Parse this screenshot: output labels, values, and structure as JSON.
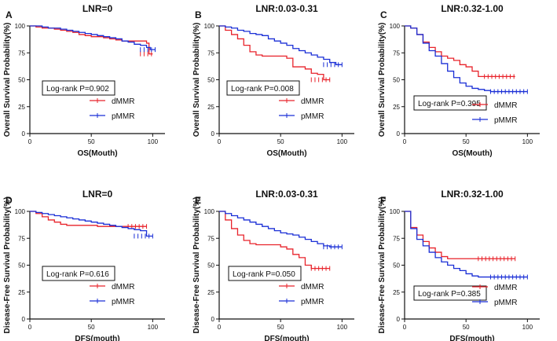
{
  "chart_data": [
    {
      "type": "line",
      "panel": "A",
      "title": "LNR=0",
      "xlabel": "OS(Mouth)",
      "ylabel": "Overall Survival Probability(%)",
      "xlim": [
        0,
        110
      ],
      "ylim": [
        0,
        100
      ],
      "xticks": [
        "0",
        "50",
        "100"
      ],
      "yticks": [
        "0",
        "25",
        "50",
        "75",
        "100"
      ],
      "annotation": "Log-rank P=0.902",
      "series": [
        {
          "name": "dMMR",
          "color": "#e8232b",
          "x": [
            0,
            5,
            10,
            15,
            20,
            25,
            30,
            35,
            40,
            45,
            50,
            55,
            60,
            65,
            70,
            75,
            80,
            85,
            90,
            95,
            97,
            100
          ],
          "y": [
            100,
            99,
            98,
            98,
            97,
            96,
            95,
            94,
            92,
            91,
            90,
            90,
            89,
            88,
            87,
            86,
            86,
            86,
            86,
            84,
            74,
            74
          ]
        },
        {
          "name": "pMMR",
          "color": "#1a2fd6",
          "x": [
            0,
            5,
            10,
            15,
            20,
            25,
            30,
            35,
            40,
            45,
            50,
            55,
            60,
            65,
            70,
            75,
            80,
            85,
            90,
            95,
            98,
            102
          ],
          "y": [
            100,
            100,
            99,
            98,
            98,
            97,
            96,
            95,
            94,
            93,
            92,
            91,
            90,
            89,
            88,
            86,
            85,
            83,
            82,
            80,
            78,
            78
          ]
        }
      ]
    },
    {
      "type": "line",
      "panel": "B",
      "title": "LNR:0.03-0.31",
      "xlabel": "OS(Mouth)",
      "ylabel": "Overall Survival Probability(%)",
      "xlim": [
        0,
        110
      ],
      "ylim": [
        0,
        100
      ],
      "xticks": [
        "0",
        "50",
        "100"
      ],
      "yticks": [
        "0",
        "25",
        "50",
        "75",
        "100"
      ],
      "annotation": "Log-rank P=0.008",
      "series": [
        {
          "name": "dMMR",
          "color": "#e8232b",
          "x": [
            0,
            5,
            10,
            15,
            20,
            25,
            30,
            35,
            40,
            45,
            50,
            55,
            60,
            65,
            70,
            75,
            80,
            85,
            90
          ],
          "y": [
            100,
            96,
            92,
            88,
            82,
            76,
            73,
            72,
            72,
            72,
            72,
            70,
            62,
            62,
            60,
            56,
            55,
            50,
            50
          ]
        },
        {
          "name": "pMMR",
          "color": "#1a2fd6",
          "x": [
            0,
            5,
            10,
            15,
            20,
            25,
            30,
            35,
            40,
            45,
            50,
            55,
            60,
            65,
            70,
            75,
            80,
            85,
            90,
            95,
            100
          ],
          "y": [
            100,
            99,
            98,
            96,
            95,
            93,
            92,
            91,
            88,
            86,
            84,
            82,
            79,
            77,
            75,
            73,
            71,
            69,
            66,
            64,
            64
          ]
        }
      ]
    },
    {
      "type": "line",
      "panel": "C",
      "title": "LNR:0.32-1.00",
      "xlabel": "OS(Mouth)",
      "ylabel": "Overall Survival Probability(%)",
      "xlim": [
        0,
        110
      ],
      "ylim": [
        0,
        100
      ],
      "xticks": [
        "0",
        "50",
        "100"
      ],
      "yticks": [
        "0",
        "25",
        "50",
        "75",
        "100"
      ],
      "annotation": "Log-rank P=0.395",
      "series": [
        {
          "name": "dMMR",
          "color": "#e8232b",
          "x": [
            0,
            5,
            10,
            15,
            20,
            25,
            30,
            35,
            40,
            45,
            50,
            55,
            60,
            65,
            70,
            80,
            90
          ],
          "y": [
            100,
            98,
            92,
            85,
            80,
            76,
            72,
            70,
            68,
            64,
            62,
            58,
            53,
            53,
            53,
            53,
            53
          ]
        },
        {
          "name": "pMMR",
          "color": "#1a2fd6",
          "x": [
            0,
            5,
            10,
            15,
            20,
            25,
            30,
            35,
            40,
            45,
            50,
            55,
            60,
            65,
            70,
            80,
            90,
            100
          ],
          "y": [
            100,
            98,
            92,
            84,
            77,
            72,
            65,
            58,
            52,
            47,
            44,
            42,
            41,
            40,
            39,
            39,
            39,
            39
          ]
        }
      ]
    },
    {
      "type": "line",
      "panel": "D",
      "title": "LNR=0",
      "xlabel": "DFS(mouth)",
      "ylabel": "Disease-Free Survival Probability(%)",
      "xlim": [
        0,
        110
      ],
      "ylim": [
        0,
        100
      ],
      "xticks": [
        "0",
        "50",
        "100"
      ],
      "yticks": [
        "0",
        "25",
        "50",
        "75",
        "100"
      ],
      "annotation": "Log-rank P=0.616",
      "series": [
        {
          "name": "dMMR",
          "color": "#e8232b",
          "x": [
            0,
            5,
            10,
            15,
            20,
            25,
            30,
            35,
            40,
            45,
            50,
            55,
            60,
            65,
            70,
            75,
            80,
            85,
            90,
            95
          ],
          "y": [
            100,
            98,
            95,
            92,
            90,
            88,
            87,
            87,
            87,
            87,
            87,
            86,
            86,
            86,
            86,
            86,
            86,
            86,
            86,
            86
          ]
        },
        {
          "name": "pMMR",
          "color": "#1a2fd6",
          "x": [
            0,
            5,
            10,
            15,
            20,
            25,
            30,
            35,
            40,
            45,
            50,
            55,
            60,
            65,
            70,
            75,
            80,
            85,
            90,
            95,
            100
          ],
          "y": [
            100,
            99,
            98,
            97,
            96,
            95,
            94,
            93,
            92,
            91,
            90,
            89,
            88,
            87,
            86,
            85,
            84,
            83,
            82,
            77,
            77
          ]
        }
      ]
    },
    {
      "type": "line",
      "panel": "E",
      "title": "LNR:0.03-0.31",
      "xlabel": "DFS(mouth)",
      "ylabel": "Disease-Free Survival Probability(%)",
      "xlim": [
        0,
        110
      ],
      "ylim": [
        0,
        100
      ],
      "xticks": [
        "0",
        "50",
        "100"
      ],
      "yticks": [
        "0",
        "25",
        "50",
        "75",
        "100"
      ],
      "annotation": "Log-rank P=0.050",
      "series": [
        {
          "name": "dMMR",
          "color": "#e8232b",
          "x": [
            0,
            5,
            10,
            15,
            20,
            25,
            30,
            35,
            40,
            45,
            50,
            55,
            60,
            65,
            70,
            75,
            80,
            85,
            90
          ],
          "y": [
            100,
            92,
            84,
            78,
            73,
            70,
            69,
            69,
            69,
            69,
            67,
            65,
            60,
            57,
            50,
            47,
            47,
            47,
            47
          ]
        },
        {
          "name": "pMMR",
          "color": "#1a2fd6",
          "x": [
            0,
            5,
            10,
            15,
            20,
            25,
            30,
            35,
            40,
            45,
            50,
            55,
            60,
            65,
            70,
            75,
            80,
            85,
            90,
            95,
            100
          ],
          "y": [
            100,
            98,
            96,
            94,
            92,
            90,
            88,
            86,
            84,
            82,
            80,
            79,
            78,
            76,
            74,
            72,
            70,
            68,
            67,
            67,
            67
          ]
        }
      ]
    },
    {
      "type": "line",
      "panel": "F",
      "title": "LNR:0.32-1.00",
      "xlabel": "DFS(mouth)",
      "ylabel": "Disease-Free Survival Probability(%)",
      "xlim": [
        0,
        110
      ],
      "ylim": [
        0,
        100
      ],
      "xticks": [
        "0",
        "50",
        "100"
      ],
      "yticks": [
        "0",
        "25",
        "50",
        "75",
        "100"
      ],
      "annotation": "Log-rank P=0.385",
      "series": [
        {
          "name": "dMMR",
          "color": "#e8232b",
          "x": [
            0,
            5,
            10,
            15,
            20,
            25,
            30,
            35,
            40,
            50,
            60,
            70,
            80,
            90
          ],
          "y": [
            100,
            85,
            78,
            72,
            66,
            62,
            58,
            56,
            56,
            56,
            56,
            56,
            56,
            56
          ]
        },
        {
          "name": "pMMR",
          "color": "#1a2fd6",
          "x": [
            0,
            5,
            10,
            15,
            20,
            25,
            30,
            35,
            40,
            45,
            50,
            55,
            60,
            70,
            80,
            90,
            100
          ],
          "y": [
            100,
            84,
            74,
            68,
            62,
            57,
            53,
            50,
            47,
            45,
            42,
            40,
            39,
            39,
            39,
            39,
            39
          ]
        }
      ]
    }
  ]
}
